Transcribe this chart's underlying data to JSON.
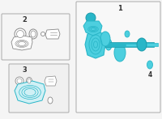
{
  "bg_color": "#f5f5f5",
  "teal": "#29b6c8",
  "teal_dark": "#1a9aaa",
  "teal_fill": "#4dcfdf",
  "gray_line": "#888888",
  "label1": "1",
  "label2": "2",
  "label3": "3",
  "label4": "4",
  "fig_width": 2.0,
  "fig_height": 1.47,
  "dpi": 100
}
